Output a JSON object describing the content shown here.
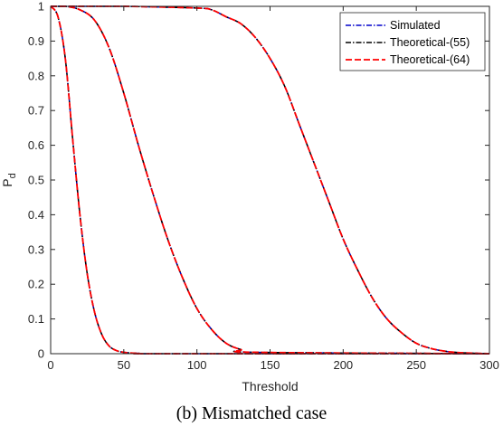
{
  "caption": "(b) Mismatched case",
  "chart_data": {
    "type": "line",
    "xlabel": "Threshold",
    "ylabel_main": "P",
    "ylabel_sub": "d",
    "xlim": [
      0,
      300
    ],
    "ylim": [
      0,
      1
    ],
    "xticks": [
      0,
      50,
      100,
      150,
      200,
      250,
      300
    ],
    "yticks": [
      0,
      0.1,
      0.2,
      0.3,
      0.4,
      0.5,
      0.6,
      0.7,
      0.8,
      0.9,
      1
    ],
    "grid": false,
    "legend_position": "top-right",
    "series": [
      {
        "name": "Simulated",
        "color": "#0000CC",
        "dash": "dash-dot"
      },
      {
        "name": "Theoretical-(55)",
        "color": "#000000",
        "dash": "dash-dot"
      },
      {
        "name": "Theoretical-(64)",
        "color": "#FF0000",
        "dash": "dashed"
      }
    ],
    "curves": [
      {
        "x": [
          0,
          5,
          10,
          15,
          20,
          25,
          30,
          35,
          40,
          45,
          50,
          60,
          80,
          300
        ],
        "y": [
          1,
          0.97,
          0.85,
          0.62,
          0.4,
          0.23,
          0.12,
          0.055,
          0.022,
          0.009,
          0.004,
          0.001,
          0,
          0
        ]
      },
      {
        "x": [
          0,
          10,
          20,
          30,
          40,
          50,
          60,
          70,
          80,
          90,
          100,
          110,
          120,
          130,
          140,
          300
        ],
        "y": [
          1,
          1,
          0.99,
          0.96,
          0.88,
          0.75,
          0.6,
          0.46,
          0.33,
          0.22,
          0.13,
          0.07,
          0.03,
          0.012,
          0.004,
          0
        ]
      },
      {
        "x": [
          0,
          50,
          100,
          110,
          120,
          130,
          140,
          150,
          160,
          170,
          180,
          190,
          200,
          210,
          220,
          230,
          240,
          250,
          260,
          270,
          280,
          300
        ],
        "y": [
          1,
          1,
          0.995,
          0.99,
          0.97,
          0.95,
          0.91,
          0.85,
          0.77,
          0.66,
          0.55,
          0.44,
          0.33,
          0.24,
          0.16,
          0.1,
          0.06,
          0.03,
          0.015,
          0.007,
          0.003,
          0
        ]
      }
    ]
  }
}
